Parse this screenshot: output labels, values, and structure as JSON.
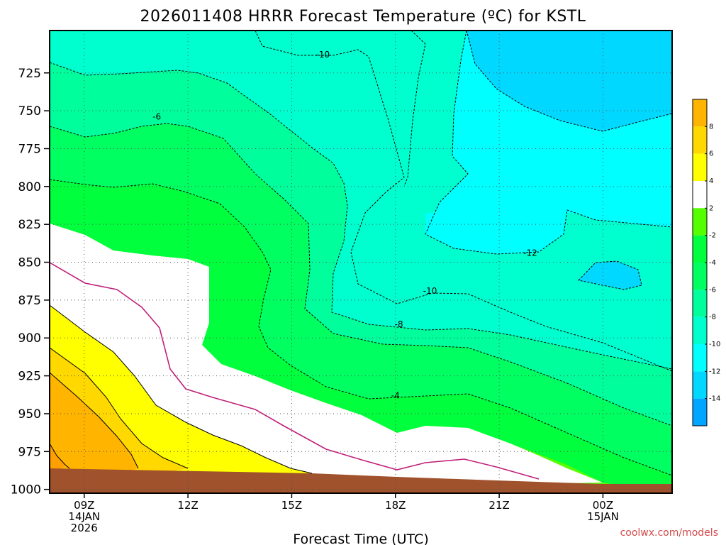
{
  "chart_data": {
    "type": "heatmap",
    "title": "2026011408 HRRR Forecast Temperature (ºC) for KSTL",
    "xlabel": "Forecast Time (UTC)",
    "ylabel": "",
    "x_ticks": [
      {
        "hour": 9,
        "lines": [
          "09Z",
          "14JAN",
          "2026"
        ]
      },
      {
        "hour": 12,
        "lines": [
          "12Z"
        ]
      },
      {
        "hour": 15,
        "lines": [
          "15Z"
        ]
      },
      {
        "hour": 18,
        "lines": [
          "18Z"
        ]
      },
      {
        "hour": 21,
        "lines": [
          "21Z"
        ]
      },
      {
        "hour": 24,
        "lines": [
          "00Z",
          "15JAN"
        ]
      }
    ],
    "xlim": [
      8,
      26
    ],
    "y_ticks": [
      725,
      750,
      775,
      800,
      825,
      850,
      875,
      900,
      925,
      950,
      975,
      1000
    ],
    "ylim": [
      1002.5,
      697
    ],
    "contour_labels": [
      {
        "text": "-10",
        "hour": 15.9,
        "p": 713
      },
      {
        "text": "-6",
        "hour": 11.1,
        "p": 754
      },
      {
        "text": "-12",
        "hour": 21.9,
        "p": 844
      },
      {
        "text": "-10",
        "hour": 19.0,
        "p": 869
      },
      {
        "text": "-8",
        "hour": 18.1,
        "p": 891
      },
      {
        "text": "-4",
        "hour": 18.0,
        "p": 938
      }
    ],
    "colorbar": {
      "levels": [
        -16,
        -14,
        -12,
        -10,
        -8,
        -6,
        -4,
        -2,
        2,
        4,
        6,
        8,
        10
      ],
      "labels": [
        "-14",
        "-12",
        "-10",
        "-8",
        "-6",
        "-4",
        "-2",
        "2",
        "4",
        "6",
        "8"
      ],
      "colors": [
        "#00a6ff",
        "#00d8ff",
        "#00ffff",
        "#00ffce",
        "#00ff9c",
        "#00ff60",
        "#00ff3c",
        "#55ff00",
        "#ffffff",
        "#ffff00",
        "#ffd800",
        "#ffb400"
      ]
    },
    "grid": true,
    "credit": "coolwx.com/models"
  }
}
